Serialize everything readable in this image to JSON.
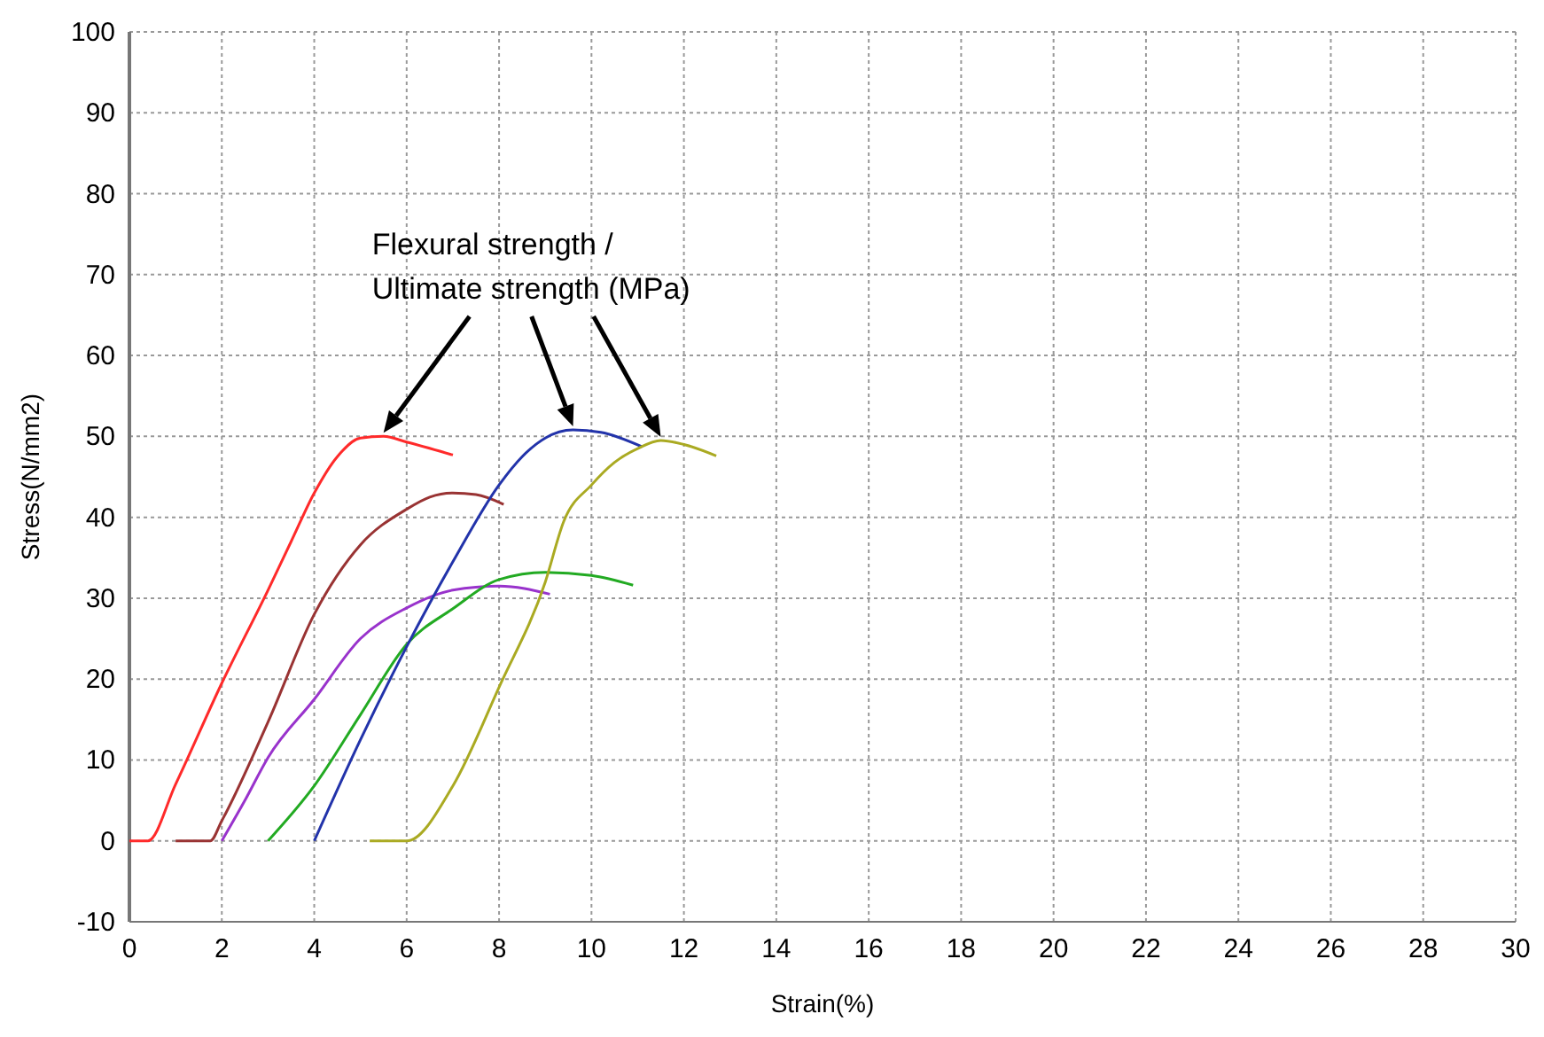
{
  "chart_data": {
    "type": "line",
    "xlabel": "Strain(%)",
    "ylabel": "Stress(N/mm2)",
    "xlim": [
      0,
      30
    ],
    "xticks": [
      0,
      2,
      4,
      6,
      8,
      10,
      12,
      14,
      16,
      18,
      20,
      22,
      24,
      26,
      28,
      30
    ],
    "ylim": [
      -10,
      100
    ],
    "yticks": [
      -10,
      0,
      10,
      20,
      30,
      40,
      50,
      60,
      70,
      80,
      90,
      100
    ],
    "grid": true,
    "marker": "none",
    "line_style": "solid",
    "annotations": [
      "Flexural strength / Ultimate strength (MPa)"
    ],
    "series": [
      {
        "color": "#ff2a2a",
        "x": [
          0,
          0.4,
          1,
          2,
          3,
          3.5,
          4,
          4.5,
          5,
          5.5,
          6,
          7
        ],
        "values": [
          0,
          0,
          7,
          19.5,
          31,
          37,
          43,
          47.5,
          49.8,
          50,
          49.3,
          47.7
        ]
      },
      {
        "color": "#993333",
        "x": [
          1,
          1.75,
          2,
          3,
          4,
          5,
          6,
          6.5,
          7,
          7.5,
          8.1
        ],
        "values": [
          0,
          0,
          2.5,
          14.7,
          28,
          36.6,
          41,
          42.5,
          43,
          42.8,
          41.6
        ]
      },
      {
        "color": "#9933cc",
        "x": [
          2,
          2.5,
          3,
          4,
          5,
          6,
          7,
          8,
          9.1
        ],
        "values": [
          0,
          5,
          10.3,
          17.5,
          25,
          28.8,
          31,
          31.5,
          30.5
        ]
      },
      {
        "color": "#22aa22",
        "x": [
          3,
          4,
          5,
          6,
          7,
          8,
          9,
          10,
          10.9
        ],
        "values": [
          0,
          6.8,
          15.6,
          24.3,
          28.7,
          32.3,
          33.2,
          32.8,
          31.6
        ]
      },
      {
        "color": "#2233aa",
        "x": [
          4,
          5,
          6,
          7,
          8,
          8.5,
          9,
          9.6,
          10.2,
          11.1
        ],
        "values": [
          0,
          12.5,
          24,
          34.5,
          44,
          47.5,
          49.8,
          50.8,
          50.5,
          48.7
        ]
      },
      {
        "color": "#aaaa22",
        "x": [
          5.2,
          5.9,
          6,
          7,
          8,
          9,
          9.4,
          10,
          10.5,
          11,
          11.5,
          12,
          12.7
        ],
        "values": [
          0,
          0,
          0,
          6.8,
          19,
          32,
          39.5,
          44,
          46.8,
          48.5,
          49.5,
          49,
          47.6
        ]
      }
    ]
  }
}
